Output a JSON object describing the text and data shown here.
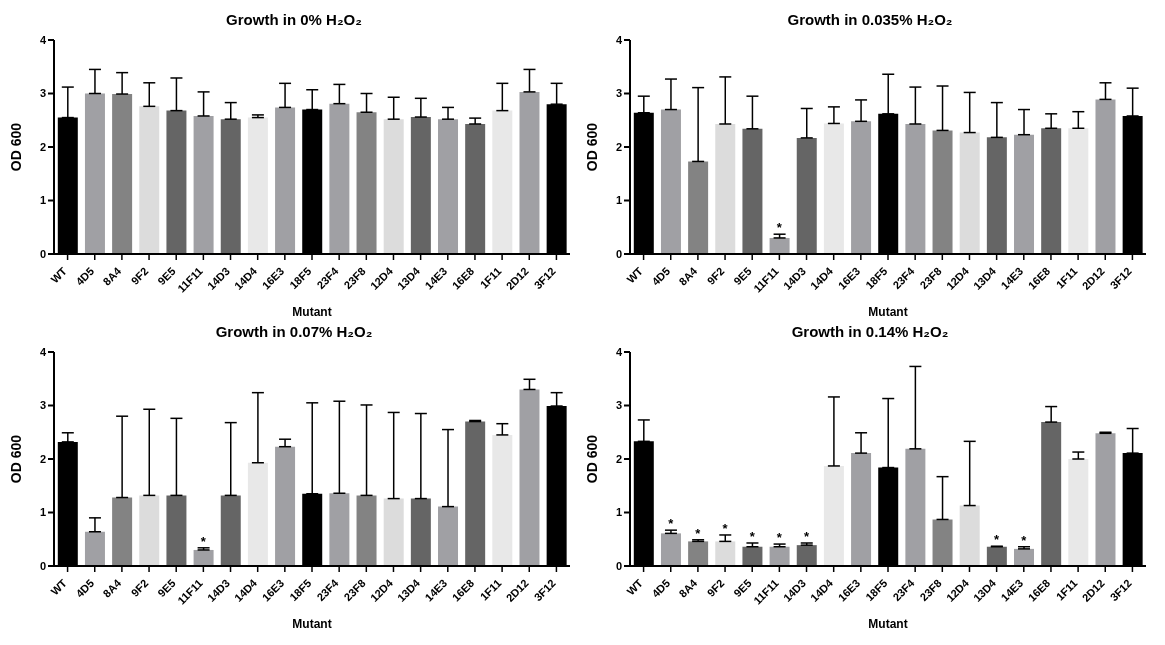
{
  "chart_data": [
    {
      "type": "bar",
      "title": "Growth in 0% H₂O₂",
      "xlabel": "Mutant",
      "ylabel": "OD 600",
      "categories": [
        "WT",
        "4D5",
        "8A4",
        "9F2",
        "9E5",
        "11F11",
        "14D3",
        "14D4",
        "16E3",
        "18F5",
        "23F4",
        "23F8",
        "12D4",
        "13D4",
        "14E3",
        "16E8",
        "1F11",
        "2D12",
        "3F12"
      ],
      "values": [
        2.55,
        3.0,
        2.99,
        2.76,
        2.68,
        2.58,
        2.52,
        2.55,
        2.74,
        2.7,
        2.81,
        2.65,
        2.52,
        2.56,
        2.52,
        2.43,
        2.68,
        3.03,
        2.8
      ],
      "errors": [
        [
          2.55,
          3.12
        ],
        [
          3.0,
          3.45
        ],
        [
          2.99,
          3.39
        ],
        [
          2.76,
          3.2
        ],
        [
          2.68,
          3.29
        ],
        [
          2.58,
          3.03
        ],
        [
          2.52,
          2.83
        ],
        [
          2.55,
          2.6
        ],
        [
          2.74,
          3.19
        ],
        [
          2.7,
          3.07
        ],
        [
          2.81,
          3.17
        ],
        [
          2.65,
          3.0
        ],
        [
          2.52,
          2.93
        ],
        [
          2.56,
          2.91
        ],
        [
          2.52,
          2.74
        ],
        [
          2.43,
          2.54
        ],
        [
          2.68,
          3.19
        ],
        [
          3.03,
          3.45
        ],
        [
          2.8,
          3.19
        ]
      ],
      "colors": [
        "#000000",
        "#a0a0a4",
        "#838383",
        "#dcdcdc",
        "#656565",
        "#a0a0a4",
        "#656565",
        "#e8e8e8",
        "#a0a0a4",
        "#000000",
        "#a0a0a4",
        "#838383",
        "#dcdcdc",
        "#656565",
        "#a0a0a4",
        "#656565",
        "#e8e8e8",
        "#a0a0a4",
        "#000000"
      ],
      "ylim": [
        0,
        4
      ],
      "yticks": [
        0,
        1,
        2,
        3,
        4
      ]
    },
    {
      "type": "bar",
      "title": "Growth in 0.035% H₂O₂",
      "xlabel": "Mutant",
      "ylabel": "OD 600",
      "categories": [
        "WT",
        "4D5",
        "8A4",
        "9F2",
        "9E5",
        "11F11",
        "14D3",
        "14D4",
        "16E3",
        "18F5",
        "23F4",
        "23F8",
        "12D4",
        "13D4",
        "14E3",
        "16E8",
        "1F11",
        "2D12",
        "3F12"
      ],
      "values": [
        2.64,
        2.7,
        1.73,
        2.43,
        2.34,
        0.3,
        2.17,
        2.44,
        2.48,
        2.62,
        2.43,
        2.31,
        2.27,
        2.18,
        2.23,
        2.35,
        2.35,
        2.89,
        2.58
      ],
      "errors": [
        [
          2.64,
          2.95
        ],
        [
          2.7,
          3.27
        ],
        [
          1.73,
          3.11
        ],
        [
          2.43,
          3.31
        ],
        [
          2.34,
          2.95
        ],
        [
          0.3,
          0.37
        ],
        [
          2.17,
          2.72
        ],
        [
          2.44,
          2.75
        ],
        [
          2.48,
          2.88
        ],
        [
          2.62,
          3.36
        ],
        [
          2.43,
          3.12
        ],
        [
          2.31,
          3.14
        ],
        [
          2.27,
          3.02
        ],
        [
          2.18,
          2.83
        ],
        [
          2.23,
          2.7
        ],
        [
          2.35,
          2.62
        ],
        [
          2.35,
          2.66
        ],
        [
          2.89,
          3.2
        ],
        [
          2.58,
          3.1
        ]
      ],
      "colors": [
        "#000000",
        "#a0a0a4",
        "#838383",
        "#dcdcdc",
        "#656565",
        "#a0a0a4",
        "#656565",
        "#e8e8e8",
        "#a0a0a4",
        "#000000",
        "#a0a0a4",
        "#838383",
        "#dcdcdc",
        "#656565",
        "#a0a0a4",
        "#656565",
        "#e8e8e8",
        "#a0a0a4",
        "#000000"
      ],
      "annotations": [
        {
          "text": "*",
          "x": "11F11",
          "y": 0.37
        }
      ],
      "ylim": [
        0,
        4
      ],
      "yticks": [
        0,
        1,
        2,
        3,
        4
      ]
    },
    {
      "type": "bar",
      "title": "Growth in 0.07% H₂O₂",
      "xlabel": "Mutant",
      "ylabel": "OD 600",
      "categories": [
        "WT",
        "4D5",
        "8A4",
        "9F2",
        "9E5",
        "11F11",
        "14D3",
        "14D4",
        "16E3",
        "18F5",
        "23F4",
        "23F8",
        "12D4",
        "13D4",
        "14E3",
        "16E8",
        "1F11",
        "2D12",
        "3F12"
      ],
      "values": [
        2.32,
        0.64,
        1.28,
        1.32,
        1.32,
        0.3,
        1.32,
        1.93,
        2.23,
        1.35,
        1.36,
        1.32,
        1.26,
        1.26,
        1.11,
        2.7,
        2.45,
        3.3,
        2.99
      ],
      "errors": [
        [
          2.32,
          2.49
        ],
        [
          0.64,
          0.9
        ],
        [
          1.28,
          2.8
        ],
        [
          1.32,
          2.93
        ],
        [
          1.32,
          2.76
        ],
        [
          0.3,
          0.34
        ],
        [
          1.32,
          2.68
        ],
        [
          1.93,
          3.24
        ],
        [
          2.23,
          2.37
        ],
        [
          1.35,
          3.05
        ],
        [
          1.36,
          3.08
        ],
        [
          1.32,
          3.01
        ],
        [
          1.26,
          2.87
        ],
        [
          1.26,
          2.85
        ],
        [
          1.11,
          2.55
        ],
        [
          2.7,
          2.72
        ],
        [
          2.45,
          2.66
        ],
        [
          3.3,
          3.49
        ],
        [
          2.99,
          3.24
        ]
      ],
      "colors": [
        "#000000",
        "#a0a0a4",
        "#838383",
        "#dcdcdc",
        "#656565",
        "#a0a0a4",
        "#656565",
        "#e8e8e8",
        "#a0a0a4",
        "#000000",
        "#a0a0a4",
        "#838383",
        "#dcdcdc",
        "#656565",
        "#a0a0a4",
        "#656565",
        "#e8e8e8",
        "#a0a0a4",
        "#000000"
      ],
      "annotations": [
        {
          "text": "*",
          "x": "11F11",
          "y": 0.34
        }
      ],
      "ylim": [
        0,
        4
      ],
      "yticks": [
        0,
        1,
        2,
        3,
        4
      ]
    },
    {
      "type": "bar",
      "title": "Growth in 0.14% H₂O₂",
      "xlabel": "Mutant",
      "ylabel": "OD 600",
      "categories": [
        "WT",
        "4D5",
        "8A4",
        "9F2",
        "9E5",
        "11F11",
        "14D3",
        "14D4",
        "16E3",
        "18F5",
        "23F4",
        "23F8",
        "12D4",
        "13D4",
        "14E3",
        "16E8",
        "1F11",
        "2D12",
        "3F12"
      ],
      "values": [
        2.33,
        0.61,
        0.46,
        0.46,
        0.36,
        0.36,
        0.39,
        1.87,
        2.11,
        1.84,
        2.19,
        0.87,
        1.13,
        0.36,
        0.32,
        2.69,
        2.0,
        2.48,
        2.11
      ],
      "errors": [
        [
          2.33,
          2.73
        ],
        [
          0.61,
          0.67
        ],
        [
          0.46,
          0.49
        ],
        [
          0.46,
          0.58
        ],
        [
          0.36,
          0.43
        ],
        [
          0.36,
          0.41
        ],
        [
          0.39,
          0.43
        ],
        [
          1.87,
          3.16
        ],
        [
          2.11,
          2.49
        ],
        [
          1.84,
          3.13
        ],
        [
          2.19,
          3.73
        ],
        [
          0.87,
          1.67
        ],
        [
          1.13,
          2.33
        ],
        [
          0.36,
          0.37
        ],
        [
          0.32,
          0.36
        ],
        [
          2.69,
          2.98
        ],
        [
          2.0,
          2.13
        ],
        [
          2.48,
          2.5
        ],
        [
          2.11,
          2.57
        ]
      ],
      "colors": [
        "#000000",
        "#a0a0a4",
        "#838383",
        "#dcdcdc",
        "#656565",
        "#a0a0a4",
        "#656565",
        "#e8e8e8",
        "#a0a0a4",
        "#000000",
        "#a0a0a4",
        "#838383",
        "#dcdcdc",
        "#656565",
        "#a0a0a4",
        "#656565",
        "#e8e8e8",
        "#a0a0a4",
        "#000000"
      ],
      "annotations": [
        {
          "text": "*",
          "x": "4D5",
          "y": 0.67
        },
        {
          "text": "*",
          "x": "8A4",
          "y": 0.49
        },
        {
          "text": "*",
          "x": "9F2",
          "y": 0.58
        },
        {
          "text": "*",
          "x": "9E5",
          "y": 0.43
        },
        {
          "text": "*",
          "x": "11F11",
          "y": 0.41
        },
        {
          "text": "*",
          "x": "14D3",
          "y": 0.43
        },
        {
          "text": "*",
          "x": "13D4",
          "y": 0.37
        },
        {
          "text": "*",
          "x": "14E3",
          "y": 0.36
        }
      ],
      "ylim": [
        0,
        4
      ],
      "yticks": [
        0,
        1,
        2,
        3,
        4
      ]
    }
  ]
}
